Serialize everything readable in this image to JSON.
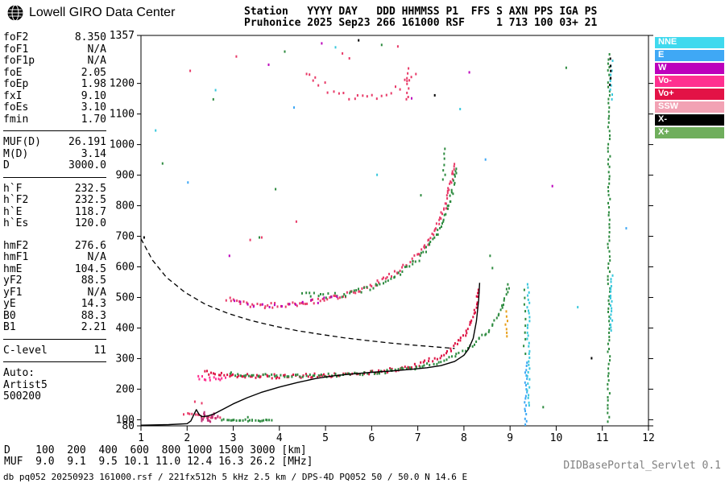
{
  "logo": {
    "text": "Lowell GIRO Data Center"
  },
  "header": {
    "line1": "Station   YYYY DAY   DDD HHMMSS P1  FFS S AXN PPS IGA PS",
    "line2": "Pruhonice 2025 Sep23 266 161000 RSF     1 713 100 03+ 21"
  },
  "params": {
    "groups": [
      {
        "rows": [
          [
            "foF2",
            "8.350"
          ],
          [
            "foF1",
            "N/A"
          ],
          [
            "foF1p",
            "N/A"
          ],
          [
            "foE",
            "2.05"
          ],
          [
            "foEp",
            "1.98"
          ],
          [
            "fxI",
            "9.10"
          ],
          [
            "foEs",
            "3.10"
          ],
          [
            "fmin",
            "1.70"
          ]
        ],
        "rule_after": true
      },
      {
        "rows": [
          [
            "MUF(D)",
            "26.191"
          ],
          [
            "M(D)",
            "3.14"
          ],
          [
            "D",
            "3000.0"
          ]
        ],
        "rule_after": true
      },
      {
        "rows": [
          [
            "h`F",
            "232.5"
          ],
          [
            "h`F2",
            "232.5"
          ],
          [
            "h`E",
            "118.7"
          ],
          [
            "h`Es",
            "120.0"
          ]
        ],
        "gap_after": true
      },
      {
        "rows": [
          [
            "hmF2",
            "276.6"
          ],
          [
            "hmF1",
            "N/A"
          ],
          [
            "hmE",
            "104.5"
          ],
          [
            "yF2",
            "88.5"
          ],
          [
            "yF1",
            "N/A"
          ],
          [
            "yE",
            "14.3"
          ],
          [
            "B0",
            "88.3"
          ],
          [
            "B1",
            "2.21"
          ]
        ],
        "rule_after": true
      },
      {
        "rows": [
          [
            "C-level",
            "11"
          ]
        ],
        "rule_after": true
      },
      {
        "rows": [
          [
            "Auto:",
            ""
          ],
          [
            "Artist5",
            ""
          ],
          [
            "500200",
            ""
          ]
        ]
      }
    ]
  },
  "legend": {
    "items": [
      {
        "label": "NNE",
        "color": "#3FD9EE"
      },
      {
        "label": "E",
        "color": "#3FA8F5"
      },
      {
        "label": "W",
        "color": "#BC00BC"
      },
      {
        "label": "Vo-",
        "color": "#FF3090"
      },
      {
        "label": "Vo+",
        "color": "#E31246"
      },
      {
        "label": "SSW",
        "color": "#F2A2B4"
      },
      {
        "label": "X-",
        "color": "#000000"
      },
      {
        "label": "X+",
        "color": "#6FAE5C"
      }
    ]
  },
  "footer": {
    "d_line": "D    100  200  400  600  800 1000 1500 3000 [km]",
    "muf_line": "MUF  9.0  9.1  9.5 10.1 11.0 12.4 16.3 26.2 [MHz]",
    "status_line": "db pq052 20250923 161000.rsf / 221fx512h 5 kHz 2.5 km / DPS-4D PQ052 50 / 50.0 N 14.6 E",
    "servlet_label": "DIDBasePortal_Servlet 0.1"
  },
  "chart_data": {
    "type": "scatter",
    "station": "Pruhonice",
    "date": "2025 Sep23",
    "day_of_year": "266",
    "time": "161000",
    "xlabel": "[MHz]",
    "ylabel": "[km]",
    "xlim": [
      1,
      12
    ],
    "ylim": [
      80,
      1357
    ],
    "x_ticks": [
      1,
      2,
      3,
      4,
      5,
      6,
      7,
      8,
      9,
      10,
      11,
      12
    ],
    "y_ticks": [
      80,
      100,
      200,
      300,
      400,
      500,
      600,
      700,
      800,
      900,
      1000,
      1100,
      1200,
      1357
    ],
    "grid": false,
    "legend_position": "right-outside",
    "muf_table": {
      "distances_km": [
        100,
        200,
        400,
        600,
        800,
        1000,
        1500,
        3000
      ],
      "muf_mhz": [
        9.0,
        9.1,
        9.5,
        10.1,
        11.0,
        12.4,
        16.3,
        26.2
      ]
    },
    "traces": [
      {
        "name": "f-trace-o-mode",
        "color": "#DD1243",
        "spacing": 3,
        "jitter": 5,
        "path": [
          [
            2.35,
            260
          ],
          [
            2.6,
            253
          ],
          [
            3.0,
            249
          ],
          [
            3.5,
            246
          ],
          [
            4.0,
            246
          ],
          [
            4.5,
            247
          ],
          [
            5.0,
            249
          ],
          [
            5.5,
            253
          ],
          [
            6.0,
            259
          ],
          [
            6.4,
            266
          ],
          [
            6.8,
            277
          ],
          [
            7.1,
            290
          ],
          [
            7.4,
            307
          ],
          [
            7.6,
            323
          ],
          [
            7.8,
            348
          ],
          [
            8.0,
            383
          ],
          [
            8.15,
            425
          ],
          [
            8.25,
            478
          ],
          [
            8.31,
            540
          ]
        ]
      },
      {
        "name": "f-trace-x-mode",
        "color": "#2E8B40",
        "spacing": 3.5,
        "jitter": 4,
        "path": [
          [
            2.9,
            254
          ],
          [
            3.5,
            249
          ],
          [
            4.2,
            247
          ],
          [
            5.0,
            249
          ],
          [
            5.6,
            253
          ],
          [
            6.2,
            260
          ],
          [
            6.8,
            271
          ],
          [
            7.2,
            283
          ],
          [
            7.6,
            301
          ],
          [
            7.95,
            326
          ],
          [
            8.25,
            358
          ],
          [
            8.55,
            400
          ],
          [
            8.75,
            450
          ],
          [
            8.9,
            510
          ],
          [
            8.97,
            558
          ]
        ]
      },
      {
        "name": "second-hop-o",
        "color": "#E83A68",
        "spacing": 3,
        "jitter": 6,
        "path": [
          [
            2.85,
            500
          ],
          [
            3.1,
            485
          ],
          [
            3.5,
            477
          ],
          [
            4.0,
            478
          ],
          [
            4.5,
            486
          ],
          [
            5.0,
            498
          ],
          [
            5.4,
            512
          ],
          [
            5.8,
            532
          ],
          [
            6.2,
            558
          ],
          [
            6.6,
            594
          ],
          [
            7.0,
            644
          ],
          [
            7.3,
            704
          ],
          [
            7.55,
            788
          ],
          [
            7.7,
            878
          ],
          [
            7.78,
            952
          ]
        ]
      },
      {
        "name": "second-hop-x",
        "color": "#2E8B40",
        "spacing": 3.5,
        "jitter": 6,
        "path": [
          [
            4.5,
            516
          ],
          [
            5.0,
            508
          ],
          [
            5.5,
            516
          ],
          [
            6.0,
            538
          ],
          [
            6.5,
            575
          ],
          [
            7.0,
            630
          ],
          [
            7.35,
            700
          ],
          [
            7.65,
            798
          ],
          [
            7.85,
            938
          ]
        ]
      },
      {
        "name": "second-hop-w",
        "color": "#BC00BC",
        "spacing": 8,
        "jitter": 5,
        "path": [
          [
            3.0,
            488
          ],
          [
            3.6,
            478
          ],
          [
            4.2,
            480
          ],
          [
            4.8,
            492
          ],
          [
            5.4,
            514
          ]
        ]
      },
      {
        "name": "third-hop",
        "color": "#E83A68",
        "spacing": 6,
        "jitter": 10,
        "path": [
          [
            4.55,
            1245
          ],
          [
            4.85,
            1205
          ],
          [
            5.15,
            1175
          ],
          [
            5.5,
            1160
          ],
          [
            5.9,
            1155
          ],
          [
            6.3,
            1170
          ],
          [
            6.7,
            1205
          ],
          [
            7.0,
            1255
          ]
        ]
      },
      {
        "name": "es-trace-green",
        "color": "#2E8B40",
        "spacing": 2.5,
        "jitter": 2,
        "path": [
          [
            2.75,
            104
          ],
          [
            3.2,
            102
          ],
          [
            3.85,
            101
          ]
        ]
      },
      {
        "name": "es-trace-pink",
        "color": "#E83A68",
        "spacing": 3,
        "jitter": 3,
        "path": [
          [
            1.92,
            122
          ],
          [
            2.2,
            117
          ],
          [
            2.5,
            113
          ],
          [
            2.78,
            110
          ]
        ]
      },
      {
        "name": "es-blob",
        "color": "#C03478",
        "spacing": 2,
        "jitter": 7,
        "path": [
          [
            2.28,
            96
          ],
          [
            2.36,
            124
          ],
          [
            2.46,
            98
          ],
          [
            2.56,
            120
          ],
          [
            2.66,
            102
          ]
        ]
      },
      {
        "name": "f-start-cluster",
        "color": "#FF3090",
        "spacing": 3,
        "jitter": 5,
        "path": [
          [
            2.2,
            241
          ],
          [
            2.5,
            238
          ],
          [
            2.85,
            240
          ]
        ]
      },
      {
        "name": "oblique-9mhz-blue",
        "color": "#3FA8F5",
        "spacing": 4,
        "jitter": 2,
        "path": [
          [
            9.32,
            88
          ],
          [
            9.33,
            300
          ]
        ]
      },
      {
        "name": "oblique-9mhz-cyan",
        "color": "#38C8DC",
        "spacing": 4.5,
        "jitter": 2,
        "path": [
          [
            9.38,
            150
          ],
          [
            9.38,
            558
          ]
        ]
      },
      {
        "name": "oblique-9mhz-green",
        "color": "#2E8B40",
        "spacing": 9,
        "jitter": 2,
        "path": [
          [
            9.3,
            320
          ],
          [
            9.3,
            550
          ]
        ]
      },
      {
        "name": "x-asymptote-orange",
        "color": "#E8A01C",
        "spacing": 5,
        "jitter": 2,
        "path": [
          [
            8.9,
            375
          ],
          [
            8.92,
            470
          ]
        ]
      },
      {
        "name": "oblique-11mhz-green",
        "color": "#2E8B40",
        "spacing": 5,
        "jitter": 2,
        "path": [
          [
            11.12,
            100
          ],
          [
            11.13,
            1310
          ]
        ]
      },
      {
        "name": "oblique-11mhz-cyan",
        "color": "#38C8DC",
        "spacing": 4,
        "jitter": 2,
        "path": [
          [
            11.18,
            395
          ],
          [
            11.18,
            585
          ]
        ]
      },
      {
        "name": "oblique-11mhz-cyan-top",
        "color": "#38C8DC",
        "spacing": 6,
        "jitter": 2,
        "path": [
          [
            11.18,
            1150
          ],
          [
            11.18,
            1295
          ]
        ]
      },
      {
        "name": "oblique-11mhz-black",
        "color": "#000000",
        "spacing": 8,
        "jitter": 2,
        "path": [
          [
            11.15,
            1200
          ],
          [
            11.15,
            1305
          ]
        ]
      },
      {
        "name": "column-7-5mhz-green",
        "color": "#2E8B40",
        "spacing": 6,
        "jitter": 3,
        "path": [
          [
            7.55,
            890
          ],
          [
            7.56,
            1005
          ]
        ]
      },
      {
        "name": "column-6-7mhz-pink",
        "color": "#E83A68",
        "spacing": 5,
        "jitter": 3,
        "path": [
          [
            6.76,
            1150
          ],
          [
            6.76,
            1262
          ]
        ]
      },
      {
        "name": "noise-pink",
        "color": "#E83A68",
        "points": [
          [
            2.05,
            1245
          ],
          [
            3.05,
            1292
          ],
          [
            5.35,
            1302
          ],
          [
            5.5,
            1286
          ],
          [
            3.35,
            692
          ],
          [
            3.6,
            700
          ],
          [
            4.35,
            752
          ],
          [
            6.55,
            1325
          ],
          [
            2.3,
            158
          ],
          [
            2.15,
            163
          ]
        ]
      },
      {
        "name": "noise-green",
        "color": "#2E8B40",
        "points": [
          [
            2.55,
            1152
          ],
          [
            4.1,
            1308
          ],
          [
            6.2,
            1330
          ],
          [
            7.05,
            838
          ],
          [
            3.9,
            858
          ],
          [
            1.45,
            942
          ],
          [
            10.2,
            1255
          ],
          [
            9.7,
            145
          ],
          [
            3.3,
            112
          ],
          [
            3.55,
            700
          ],
          [
            8.55,
            640
          ],
          [
            8.6,
            600
          ]
        ]
      },
      {
        "name": "noise-cyan",
        "color": "#38C8DC",
        "points": [
          [
            2.6,
            1182
          ],
          [
            5.2,
            1322
          ],
          [
            7.9,
            1120
          ],
          [
            10.45,
            472
          ],
          [
            6.1,
            905
          ],
          [
            1.3,
            1050
          ]
        ]
      },
      {
        "name": "noise-magenta",
        "color": "#BC00BC",
        "points": [
          [
            3.75,
            1265
          ],
          [
            4.9,
            1335
          ],
          [
            6.85,
            1155
          ],
          [
            2.9,
            640
          ],
          [
            8.1,
            1240
          ],
          [
            9.9,
            868
          ]
        ]
      },
      {
        "name": "noise-black",
        "color": "#000000",
        "points": [
          [
            1.05,
            700
          ],
          [
            5.7,
            1345
          ],
          [
            7.35,
            1165
          ],
          [
            10.75,
            305
          ]
        ]
      },
      {
        "name": "noise-blue",
        "color": "#3FA8F5",
        "points": [
          [
            4.3,
            1125
          ],
          [
            8.45,
            955
          ],
          [
            2.0,
            880
          ],
          [
            11.5,
            730
          ]
        ]
      }
    ],
    "lines": [
      {
        "name": "artist-fitted-trace",
        "style": "solid",
        "color": "#000000",
        "width": 1.4,
        "path": [
          [
            1.0,
            82
          ],
          [
            1.6,
            84
          ],
          [
            2.0,
            87
          ],
          [
            2.08,
            96
          ],
          [
            2.15,
            118
          ],
          [
            2.2,
            133
          ],
          [
            2.26,
            117
          ],
          [
            2.32,
            110
          ],
          [
            2.45,
            112
          ],
          [
            2.6,
            120
          ],
          [
            2.8,
            136
          ],
          [
            3.0,
            152
          ],
          [
            3.3,
            172
          ],
          [
            3.6,
            189
          ],
          [
            4.0,
            207
          ],
          [
            4.4,
            222
          ],
          [
            4.8,
            235
          ],
          [
            5.2,
            244
          ],
          [
            5.6,
            250
          ],
          [
            6.0,
            255
          ],
          [
            6.4,
            259
          ],
          [
            6.8,
            264
          ],
          [
            7.2,
            270
          ],
          [
            7.5,
            277
          ],
          [
            7.8,
            291
          ],
          [
            8.0,
            311
          ],
          [
            8.1,
            331
          ],
          [
            8.2,
            366
          ],
          [
            8.27,
            422
          ],
          [
            8.32,
            492
          ],
          [
            8.34,
            548
          ]
        ]
      },
      {
        "name": "muf-transmission-curve",
        "style": "dashed",
        "color": "#000000",
        "width": 1.3,
        "path": [
          [
            1.0,
            692
          ],
          [
            1.25,
            622
          ],
          [
            1.55,
            566
          ],
          [
            1.95,
            517
          ],
          [
            2.4,
            477
          ],
          [
            2.9,
            447
          ],
          [
            3.4,
            424
          ],
          [
            3.9,
            406
          ],
          [
            4.4,
            391
          ],
          [
            4.9,
            379
          ],
          [
            5.4,
            368
          ],
          [
            5.9,
            359
          ],
          [
            6.4,
            351
          ],
          [
            6.9,
            344
          ],
          [
            7.4,
            338
          ],
          [
            7.8,
            333
          ]
        ]
      }
    ]
  }
}
